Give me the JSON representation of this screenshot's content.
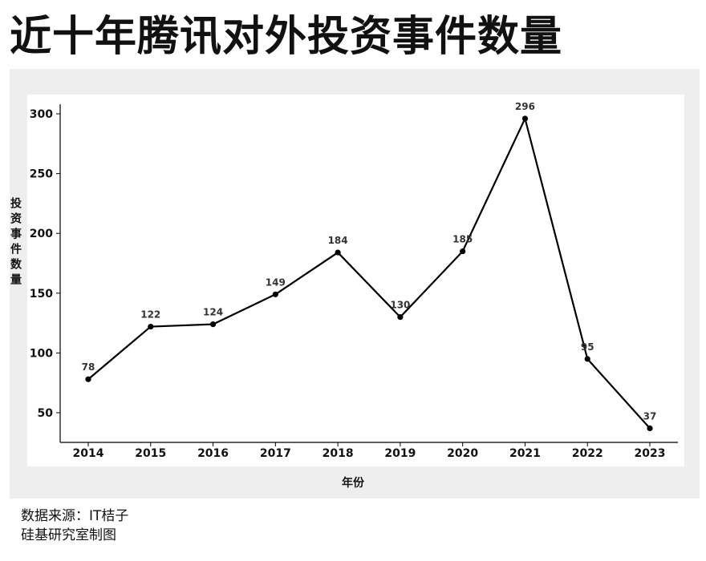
{
  "title": "近十年腾讯对外投资事件数量",
  "footer": {
    "source": "数据来源：IT桔子",
    "credit": "硅基研究室制图"
  },
  "chart_data": {
    "type": "line",
    "xlabel": "年份",
    "ylabel": "投资事件数量",
    "categories": [
      "2014",
      "2015",
      "2016",
      "2017",
      "2018",
      "2019",
      "2020",
      "2021",
      "2022",
      "2023"
    ],
    "series": [
      {
        "values": [
          78,
          122,
          124,
          149,
          184,
          130,
          185,
          296,
          95,
          37
        ]
      }
    ],
    "data_labels": [
      "78",
      "122",
      "124",
      "149",
      "184",
      "130",
      "185",
      "296",
      "95",
      "37"
    ],
    "y_ticks": [
      "50",
      "100",
      "150",
      "200",
      "250",
      "300"
    ],
    "ylim": [
      23,
      309
    ],
    "grid": false,
    "legend": "none",
    "colors": {
      "line": "#000000",
      "plot_background": "#ffffff",
      "panel_background": "#eeeeee"
    }
  }
}
